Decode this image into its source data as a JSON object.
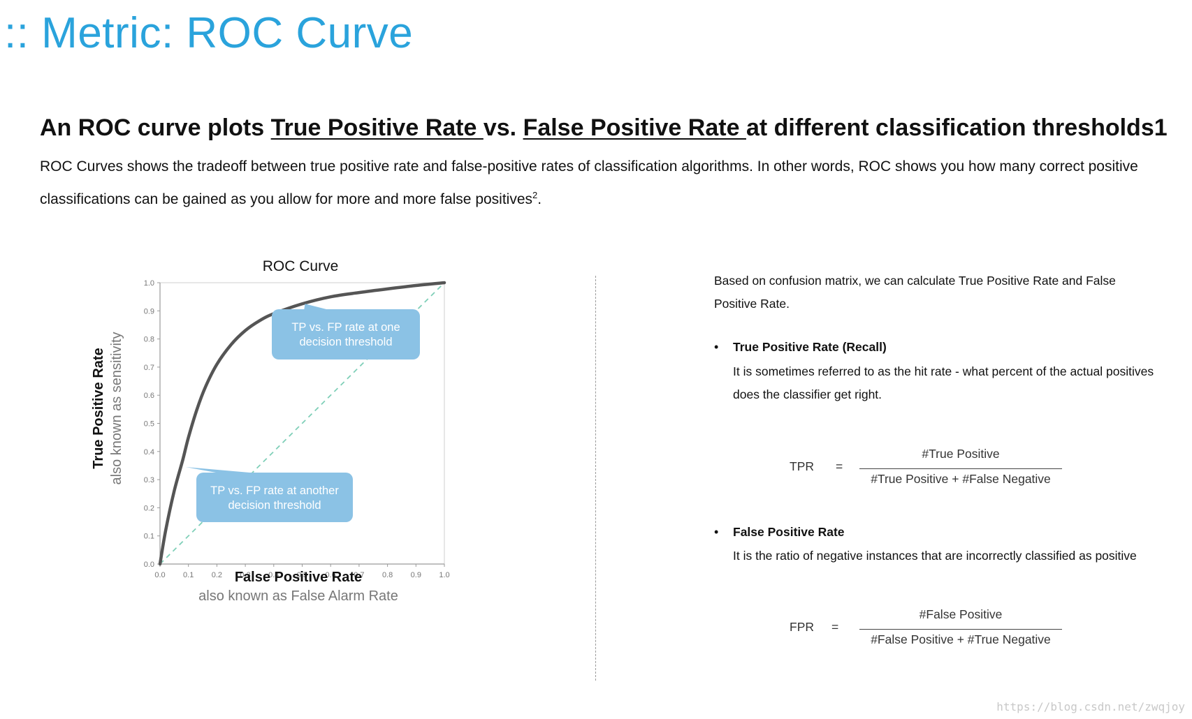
{
  "page": {
    "title": ":: Metric: ROC Curve",
    "headline": {
      "part1": "An ROC curve plots ",
      "link1": "True Positive Rate ",
      "part2": "vs. ",
      "link2": "False Positive Rate ",
      "part3": "at different classification thresholds1"
    },
    "intro": {
      "text": "ROC Curves shows the tradeoff between true positive rate and false-positive rates of classification algorithms. In other words, ROC shows you how many correct positive classifications can be gained as you allow for more and more false positives",
      "sup": "2",
      "end": "."
    },
    "watermark": "https://blog.csdn.net/zwqjoy"
  },
  "right": {
    "lead": "Based on confusion matrix, we can calculate True Positive Rate and False Positive Rate.",
    "bullet_symbol": "•",
    "tpr": {
      "heading": "True Positive Rate (Recall)",
      "body": "It is sometimes referred to as the hit rate - what percent of the actual positives does the classifier get right.",
      "lhs": "TPR",
      "eq": "=",
      "numerator": "#True Positive",
      "denominator": "#True Positive + #False Negative"
    },
    "fpr": {
      "heading": "False Positive Rate",
      "body": "It is the ratio of negative instances that are incorrectly classified as positive",
      "lhs": "FPR",
      "eq": "=",
      "numerator": "#False Positive",
      "denominator": "#False Positive + #True Negative"
    }
  },
  "chart_data": {
    "type": "line",
    "title": "ROC Curve",
    "xlabel": "False Positive Rate",
    "xlabel_sub": "also known as False Alarm Rate",
    "ylabel": "True Positive Rate",
    "ylabel_sub": "also known as sensitivity",
    "xlim": [
      0,
      1
    ],
    "ylim": [
      0,
      1
    ],
    "xticks": [
      "0.0",
      "0.1",
      "0.2",
      "0.3",
      "0.4",
      "0.5",
      "0.6",
      "0.7",
      "0.8",
      "0.9",
      "1.0"
    ],
    "yticks": [
      "0.0",
      "0.1",
      "0.2",
      "0.3",
      "0.4",
      "0.5",
      "0.6",
      "0.7",
      "0.8",
      "0.9",
      "1.0"
    ],
    "grid": false,
    "series": [
      {
        "role": "roc",
        "color": "#555555",
        "x": [
          0.0,
          0.02,
          0.05,
          0.08,
          0.1,
          0.13,
          0.16,
          0.2,
          0.25,
          0.3,
          0.35,
          0.4,
          0.5,
          0.6,
          0.7,
          0.8,
          0.9,
          1.0
        ],
        "y": [
          0.0,
          0.12,
          0.26,
          0.37,
          0.45,
          0.55,
          0.63,
          0.71,
          0.78,
          0.83,
          0.865,
          0.89,
          0.925,
          0.95,
          0.965,
          0.978,
          0.99,
          1.0
        ]
      },
      {
        "role": "random",
        "color": "#7fcfb8",
        "dashed": true,
        "x": [
          0,
          1
        ],
        "y": [
          0,
          1
        ]
      }
    ],
    "annotations": [
      {
        "text_line1": "TP vs. FP rate at one",
        "text_line2": "decision threshold",
        "pointer_x": 0.51,
        "pointer_y": 0.925,
        "color": "#8bc2e5"
      },
      {
        "text_line1": "TP vs. FP rate at another",
        "text_line2": "decision threshold",
        "pointer_x": 0.09,
        "pointer_y": 0.345,
        "color": "#8bc2e5"
      }
    ]
  }
}
